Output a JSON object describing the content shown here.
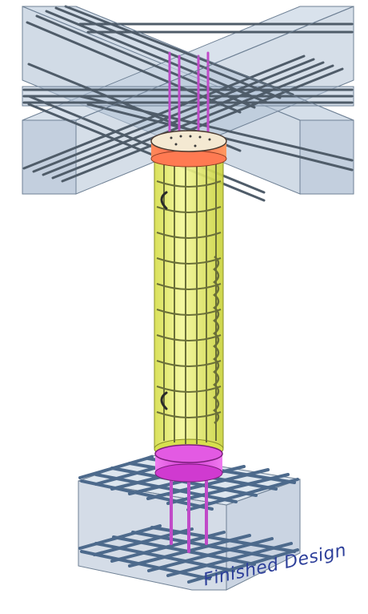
{
  "caption": "Finished Design",
  "colors": {
    "concrete_fill": "#b9c9db",
    "concrete_edge": "#6f8195",
    "rebar": "#5d6b79",
    "rebar_dark": "#3b4652",
    "column_fill": "#e4ea6a",
    "ring_top": "#ff6a4a",
    "ring_bottom": "#e040e0",
    "dowel": "#c04ac8",
    "caption": "#2d3f9a"
  }
}
